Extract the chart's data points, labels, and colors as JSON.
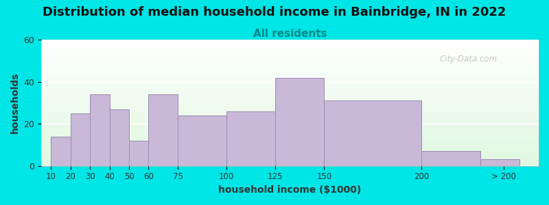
{
  "title": "Distribution of median household income in Bainbridge, IN in 2022",
  "subtitle": "All residents",
  "xlabel": "household income ($1000)",
  "ylabel": "households",
  "background_outer": "#00e5e5",
  "bar_color": "#c9b8d8",
  "bar_edge_color": "#9b8ab0",
  "categories": [
    "10",
    "20",
    "30",
    "40",
    "50",
    "60",
    "75",
    "100",
    "125",
    "150",
    "200",
    "> 200"
  ],
  "values": [
    14,
    25,
    34,
    27,
    12,
    34,
    24,
    26,
    42,
    31,
    7,
    3
  ],
  "ylim": [
    0,
    60
  ],
  "yticks": [
    0,
    20,
    40,
    60
  ],
  "x_positions": [
    10,
    20,
    30,
    40,
    50,
    60,
    75,
    100,
    125,
    150,
    200,
    230
  ],
  "widths": [
    10,
    10,
    10,
    10,
    10,
    15,
    25,
    25,
    25,
    50,
    30,
    20
  ],
  "xtick_positions": [
    10,
    20,
    30,
    40,
    50,
    60,
    75,
    100,
    125,
    150,
    200,
    242
  ],
  "xtick_labels": [
    "10",
    "20",
    "30",
    "40",
    "50",
    "60",
    "75",
    "100",
    "125",
    "150",
    "200",
    "> 200"
  ],
  "xlim": [
    5,
    260
  ],
  "title_fontsize": 13,
  "subtitle_fontsize": 11,
  "axis_label_fontsize": 10,
  "watermark_text": "City-Data.com"
}
